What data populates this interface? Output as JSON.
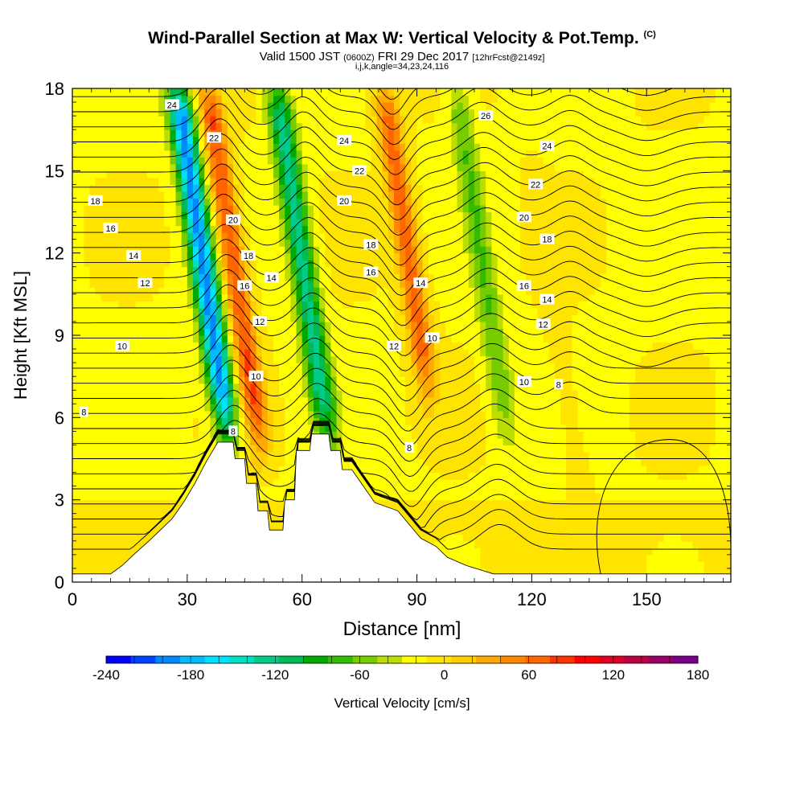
{
  "title": {
    "line1": "Wind-Parallel Section at Max W: Vertical Velocity & Pot.Temp.",
    "line1_unit": "(C)",
    "line2_a": "Valid 1500 JST",
    "line2_b": "(0600Z)",
    "line2_c": "FRI 29 Dec 2017",
    "line2_d": "[12hrFcst@2149z]",
    "line3": "i,j,k,angle=34,23,24,116"
  },
  "chart_data": {
    "type": "heatmap",
    "xlabel": "Distance [nm]",
    "ylabel": "Height [Kft MSL]",
    "xlim": [
      0,
      172
    ],
    "ylim": [
      0,
      18
    ],
    "xticks": [
      0,
      30,
      60,
      90,
      120,
      150
    ],
    "yticks": [
      0,
      3,
      6,
      9,
      12,
      15,
      18
    ],
    "colorbar": {
      "label": "Vertical Velocity [cm/s]",
      "min": -240,
      "max": 180,
      "step": 20,
      "tick_labels": [
        -240,
        -180,
        -120,
        -60,
        0,
        60,
        120,
        180
      ],
      "colors": [
        "#0000ff",
        "#0044ff",
        "#0088ff",
        "#00bbff",
        "#00e0ff",
        "#00e0c0",
        "#00cc88",
        "#00bb55",
        "#00aa00",
        "#33bb00",
        "#77cc00",
        "#bbdd00",
        "#ffff00",
        "#ffe400",
        "#ffcc00",
        "#ffaa00",
        "#ff8800",
        "#ff6600",
        "#ff3300",
        "#ff0000",
        "#dd0022",
        "#bb0044",
        "#990066",
        "#770088"
      ]
    },
    "velocity_features": [
      {
        "name": "downdraft",
        "x": 40,
        "z_top": 18,
        "z_bottom": 5.5,
        "w": -190
      },
      {
        "name": "updraft",
        "x": 48,
        "z_top": 18,
        "z_bottom": 5,
        "w": 120
      },
      {
        "name": "downdraft",
        "x": 66,
        "z_top": 18,
        "z_bottom": 5.3,
        "w": -110
      },
      {
        "name": "updraft",
        "x": 94,
        "z_top": 18,
        "z_bottom": 7,
        "w": 110
      },
      {
        "name": "downdraft",
        "x": 113,
        "z_top": 18,
        "z_bottom": 5.5,
        "w": -40
      },
      {
        "name": "updraft",
        "x": 130,
        "z_top": 15,
        "z_bottom": 0,
        "w": 30
      }
    ],
    "theta_label_values": [
      8,
      10,
      12,
      14,
      16,
      18,
      20,
      22,
      24,
      26
    ],
    "contour_labels": [
      {
        "text": "24",
        "x": 26,
        "z": 17.4
      },
      {
        "text": "22",
        "x": 37,
        "z": 16.2
      },
      {
        "text": "18",
        "x": 6,
        "z": 13.9
      },
      {
        "text": "16",
        "x": 10,
        "z": 12.9
      },
      {
        "text": "14",
        "x": 16,
        "z": 11.9
      },
      {
        "text": "12",
        "x": 19,
        "z": 10.9
      },
      {
        "text": "20",
        "x": 42,
        "z": 13.2
      },
      {
        "text": "18",
        "x": 46,
        "z": 11.9
      },
      {
        "text": "16",
        "x": 45,
        "z": 10.8
      },
      {
        "text": "14",
        "x": 52,
        "z": 11.1
      },
      {
        "text": "12",
        "x": 49,
        "z": 9.5
      },
      {
        "text": "10",
        "x": 48,
        "z": 7.5
      },
      {
        "text": "8",
        "x": 42,
        "z": 5.5
      },
      {
        "text": "10",
        "x": 13,
        "z": 8.6
      },
      {
        "text": "8",
        "x": 3,
        "z": 6.2
      },
      {
        "text": "24",
        "x": 71,
        "z": 16.1
      },
      {
        "text": "22",
        "x": 75,
        "z": 15.0
      },
      {
        "text": "20",
        "x": 71,
        "z": 13.9
      },
      {
        "text": "18",
        "x": 78,
        "z": 12.3
      },
      {
        "text": "16",
        "x": 78,
        "z": 11.3
      },
      {
        "text": "14",
        "x": 91,
        "z": 10.9
      },
      {
        "text": "12",
        "x": 84,
        "z": 8.6
      },
      {
        "text": "10",
        "x": 94,
        "z": 8.9
      },
      {
        "text": "8",
        "x": 88,
        "z": 4.9
      },
      {
        "text": "26",
        "x": 108,
        "z": 17.0
      },
      {
        "text": "24",
        "x": 124,
        "z": 15.9
      },
      {
        "text": "22",
        "x": 121,
        "z": 14.5
      },
      {
        "text": "20",
        "x": 118,
        "z": 13.3
      },
      {
        "text": "18",
        "x": 124,
        "z": 12.5
      },
      {
        "text": "16",
        "x": 118,
        "z": 10.8
      },
      {
        "text": "14",
        "x": 124,
        "z": 10.3
      },
      {
        "text": "12",
        "x": 123,
        "z": 9.4
      },
      {
        "text": "10",
        "x": 118,
        "z": 7.3
      },
      {
        "text": "8",
        "x": 127,
        "z": 7.2
      }
    ],
    "terrain_kft": [
      [
        0,
        0.3
      ],
      [
        10,
        0.3
      ],
      [
        13,
        0.6
      ],
      [
        16,
        1.0
      ],
      [
        20,
        1.5
      ],
      [
        23,
        1.9
      ],
      [
        26,
        2.3
      ],
      [
        29,
        2.9
      ],
      [
        32,
        3.6
      ],
      [
        35,
        4.4
      ],
      [
        38,
        5.1
      ],
      [
        42,
        5.1
      ],
      [
        42.5,
        4.5
      ],
      [
        45,
        4.5
      ],
      [
        45.5,
        3.6
      ],
      [
        48,
        3.6
      ],
      [
        48.5,
        2.6
      ],
      [
        51,
        2.6
      ],
      [
        51.5,
        1.9
      ],
      [
        55,
        1.9
      ],
      [
        55.5,
        3.0
      ],
      [
        58,
        3.0
      ],
      [
        58.5,
        4.8
      ],
      [
        62,
        4.8
      ],
      [
        62.5,
        5.4
      ],
      [
        67,
        5.4
      ],
      [
        67.5,
        4.8
      ],
      [
        70,
        4.8
      ],
      [
        70.5,
        4.1
      ],
      [
        73,
        4.1
      ],
      [
        76,
        3.5
      ],
      [
        79,
        2.9
      ],
      [
        85,
        2.6
      ],
      [
        88,
        2.1
      ],
      [
        91,
        1.6
      ],
      [
        95,
        1.3
      ],
      [
        98,
        0.9
      ],
      [
        103,
        0.6
      ],
      [
        110,
        0.3
      ],
      [
        172,
        0.3
      ]
    ]
  }
}
